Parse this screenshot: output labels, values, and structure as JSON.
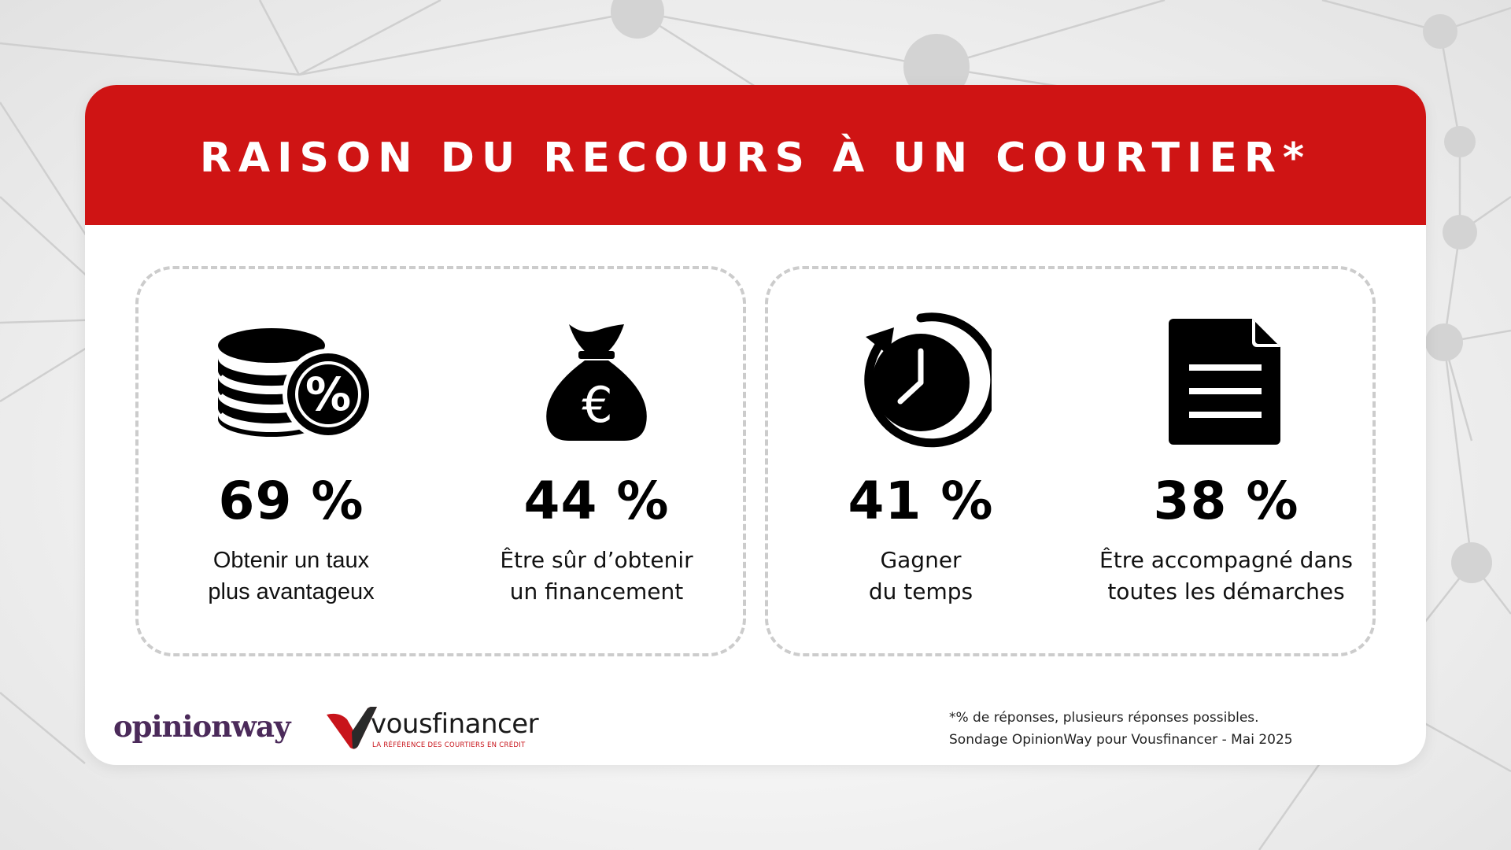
{
  "title": "RAISON DU RECOURS À UN COURTIER*",
  "colors": {
    "banner": "#cf1414",
    "card": "#ffffff",
    "dashed_border": "#cccccc",
    "text": "#000000",
    "opinionway_brand": "#4b2a5a",
    "vousfinancer_brand": "#c8141b"
  },
  "stats": [
    {
      "value": "69 %",
      "label_line1": "Obtenir un taux",
      "label_line2": "plus avantageux",
      "icon": "coins-percent-icon"
    },
    {
      "value": "44 %",
      "label_line1": "Être sûr d’obtenir",
      "label_line2": "un financement",
      "icon": "money-bag-euro-icon"
    },
    {
      "value": "41 %",
      "label_line1": "Gagner",
      "label_line2": "du temps",
      "icon": "clock-icon"
    },
    {
      "value": "38 %",
      "label_line1": "Être accompagné dans",
      "label_line2": "toutes les démarches",
      "icon": "document-icon"
    }
  ],
  "footer": {
    "logo_opinionway": "opinionway",
    "logo_vousfinancer": "vousfinancer",
    "logo_vousfinancer_tagline": "LA RÉFÉRENCE DES COURTIERS EN CRÉDIT",
    "note_line1": "*% de réponses, plusieurs réponses possibles.",
    "note_line2": "Sondage OpinionWay pour Vousfinancer - Mai 2025"
  }
}
